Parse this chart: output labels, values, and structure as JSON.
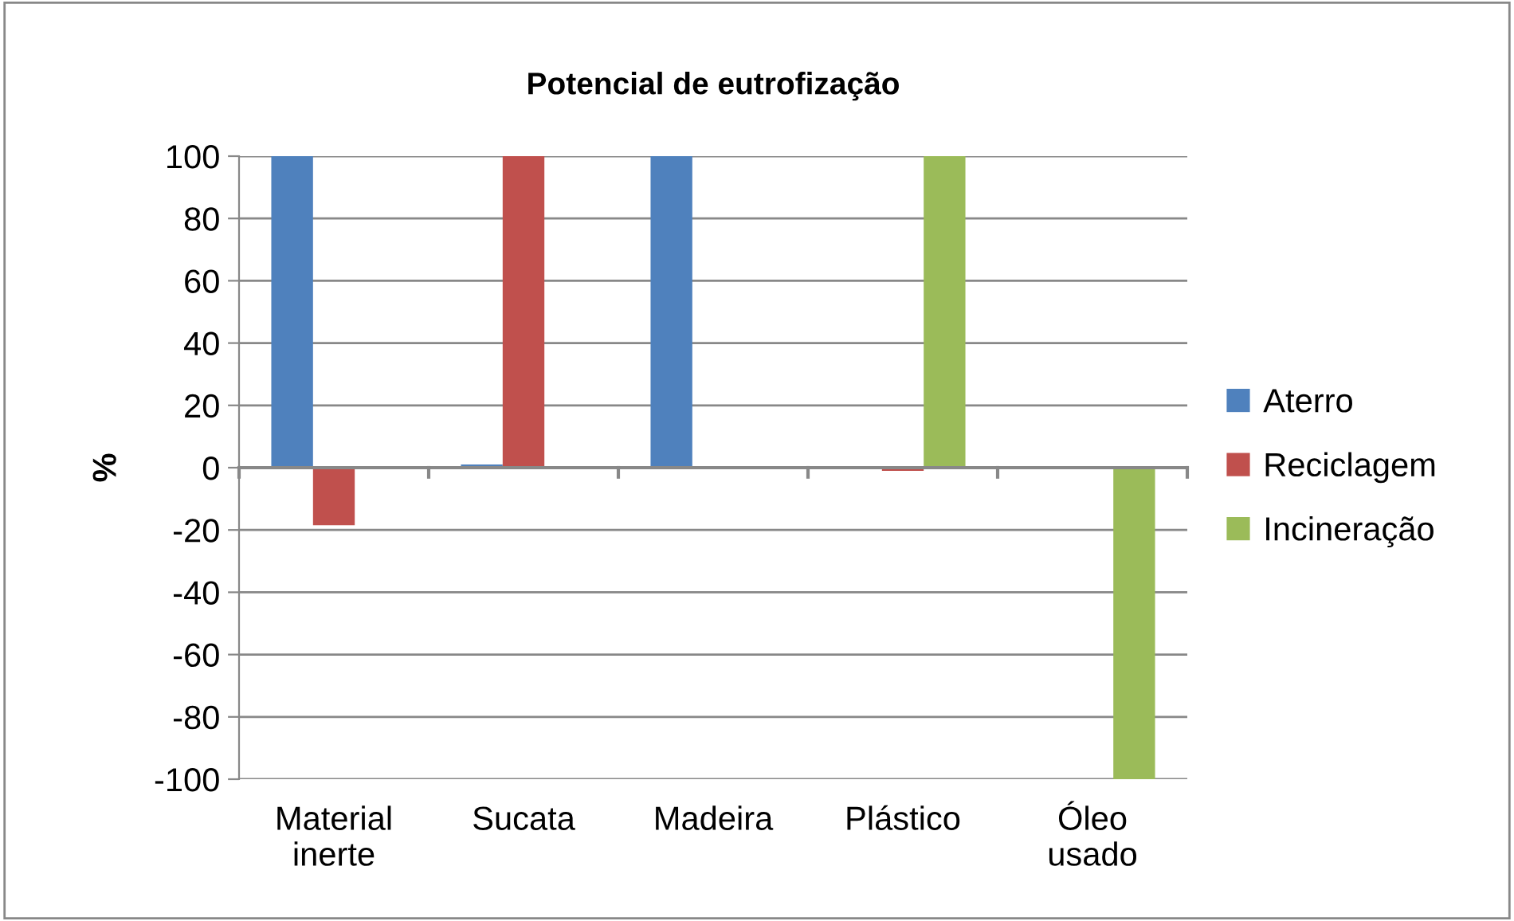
{
  "chart_data": {
    "type": "bar",
    "title": "Potencial de eutrofização",
    "ylabel": "%",
    "categories": [
      "Material\ninerte",
      "Sucata",
      "Madeira",
      "Plástico",
      "Óleo\nusado"
    ],
    "series": [
      {
        "name": "Aterro",
        "color": "#4f81bd",
        "values": [
          100,
          1,
          100,
          0,
          0
        ]
      },
      {
        "name": "Reciclagem",
        "color": "#c0504d",
        "values": [
          -18.5,
          100,
          -0.5,
          -1,
          0
        ]
      },
      {
        "name": "Incineração",
        "color": "#9bbb59",
        "values": [
          0,
          0,
          0,
          100,
          -100
        ]
      }
    ],
    "ylim": [
      -100,
      100
    ],
    "yticks": [
      -100,
      -80,
      -60,
      -40,
      -20,
      0,
      20,
      40,
      60,
      80,
      100
    ],
    "grid": "y",
    "legend": "right"
  }
}
